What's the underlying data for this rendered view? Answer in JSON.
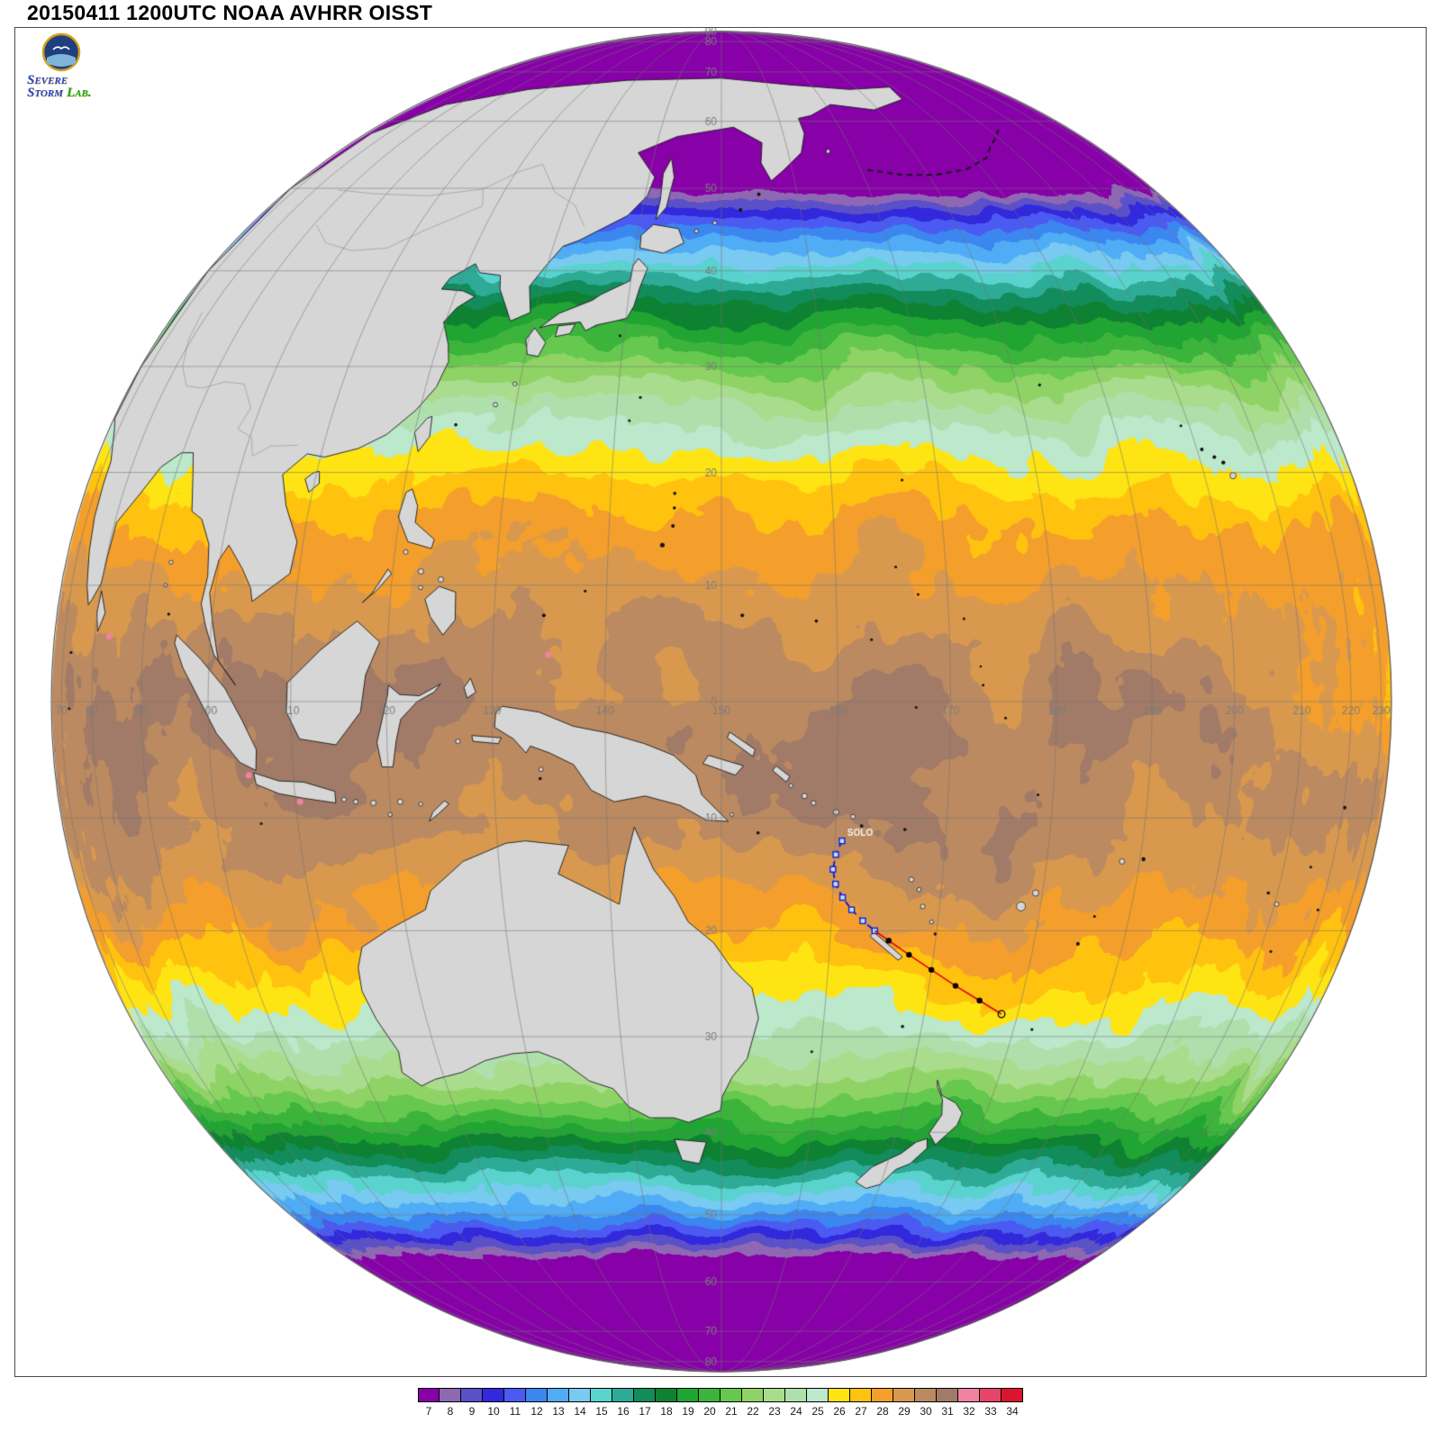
{
  "header": {
    "title": "20150411 1200UTC NOAA AVHRR OISST"
  },
  "logo": {
    "line1": "Severe",
    "line2": "Storm",
    "line3": "Lab."
  },
  "colorbar": {
    "values": [
      "7",
      "8",
      "9",
      "10",
      "11",
      "12",
      "13",
      "14",
      "15",
      "16",
      "17",
      "18",
      "19",
      "20",
      "21",
      "22",
      "23",
      "24",
      "25",
      "26",
      "27",
      "28",
      "29",
      "30",
      "31",
      "32",
      "33",
      "34"
    ],
    "colors": [
      "#8700a8",
      "#8f68b4",
      "#5a50c8",
      "#3228dc",
      "#4b5af0",
      "#3c86f0",
      "#50acf5",
      "#78caf0",
      "#5ad2cd",
      "#2dab96",
      "#118c5a",
      "#0e8232",
      "#20a432",
      "#3cb43c",
      "#66c84e",
      "#8fd366",
      "#a9dc8c",
      "#afe0ac",
      "#bce8cb",
      "#ffe414",
      "#ffc30f",
      "#f49f2c",
      "#d8994f",
      "#bc8a60",
      "#a17b67",
      "#f083a2",
      "#e64569",
      "#dc1430"
    ]
  },
  "globe": {
    "lon_labels": [
      "70",
      "80",
      "90",
      "100",
      "110",
      "120",
      "130",
      "140",
      "150",
      "160",
      "170",
      "180",
      "190",
      "200",
      "210",
      "220",
      "230"
    ],
    "lat_labels": [
      "90",
      "80",
      "70",
      "60",
      "50",
      "40",
      "30",
      "20",
      "10",
      "0",
      "10",
      "20",
      "30",
      "40",
      "50",
      "60",
      "70",
      "80"
    ],
    "storm_label": "SOLO"
  },
  "chart_data": {
    "type": "heatmap",
    "title": "20150411 1200UTC NOAA AVHRR OISST",
    "variable": "sea surface temperature",
    "units": "degC",
    "projection": "orthographic globe centered on the equator at 150E (western/central Pacific)",
    "scale_values": [
      7,
      8,
      9,
      10,
      11,
      12,
      13,
      14,
      15,
      16,
      17,
      18,
      19,
      20,
      21,
      22,
      23,
      24,
      25,
      26,
      27,
      28,
      29,
      30,
      31,
      32,
      33,
      34
    ],
    "scale_colors": [
      "#8700a8",
      "#8f68b4",
      "#5a50c8",
      "#3228dc",
      "#4b5af0",
      "#3c86f0",
      "#50acf5",
      "#78caf0",
      "#5ad2cd",
      "#2dab96",
      "#118c5a",
      "#0e8232",
      "#20a432",
      "#3cb43c",
      "#66c84e",
      "#8fd366",
      "#a9dc8c",
      "#afe0ac",
      "#bce8cb",
      "#ffe414",
      "#ffc30f",
      "#f49f2c",
      "#d8994f",
      "#bc8a60",
      "#a17b67",
      "#f083a2",
      "#e64569",
      "#dc1430"
    ],
    "lon_ticks_deg_e": [
      70,
      80,
      90,
      100,
      110,
      120,
      130,
      140,
      150,
      160,
      170,
      180,
      190,
      200,
      210,
      220,
      230
    ],
    "lat_ticks_deg": [
      90,
      80,
      70,
      60,
      50,
      40,
      30,
      20,
      10,
      0,
      -10,
      -20,
      -30,
      -40,
      -50,
      -60,
      -70,
      -80
    ],
    "gridline_spacing_deg": 10,
    "storm_track": {
      "name": "SOLO",
      "segments": [
        {
          "phase": "analysis",
          "line_color": "#1212dc",
          "line_style": "dashed",
          "marker": "open-square",
          "points_lat_lon": [
            [
              -12.0,
              160.6
            ],
            [
              -13.2,
              160.1
            ],
            [
              -14.5,
              159.9
            ],
            [
              -15.8,
              160.2
            ],
            [
              -17.0,
              160.9
            ],
            [
              -18.1,
              161.8
            ],
            [
              -19.1,
              162.9
            ],
            [
              -20.0,
              164.1
            ]
          ]
        },
        {
          "phase": "forecast",
          "line_color": "#e00000",
          "line_style": "solid",
          "marker": "filled-circle",
          "points_lat_lon": [
            [
              -20.0,
              164.1
            ],
            [
              -20.9,
              165.5
            ],
            [
              -22.2,
              167.6
            ],
            [
              -23.6,
              170.0
            ],
            [
              -25.1,
              172.7
            ],
            [
              -26.5,
              175.5
            ],
            [
              -27.8,
              178.2
            ]
          ]
        }
      ]
    },
    "hot_spots_above_scale": [
      [
        4,
        135
      ],
      [
        -6.3,
        104.8
      ],
      [
        -8.6,
        110.5
      ],
      [
        5.6,
        83.3
      ]
    ]
  }
}
